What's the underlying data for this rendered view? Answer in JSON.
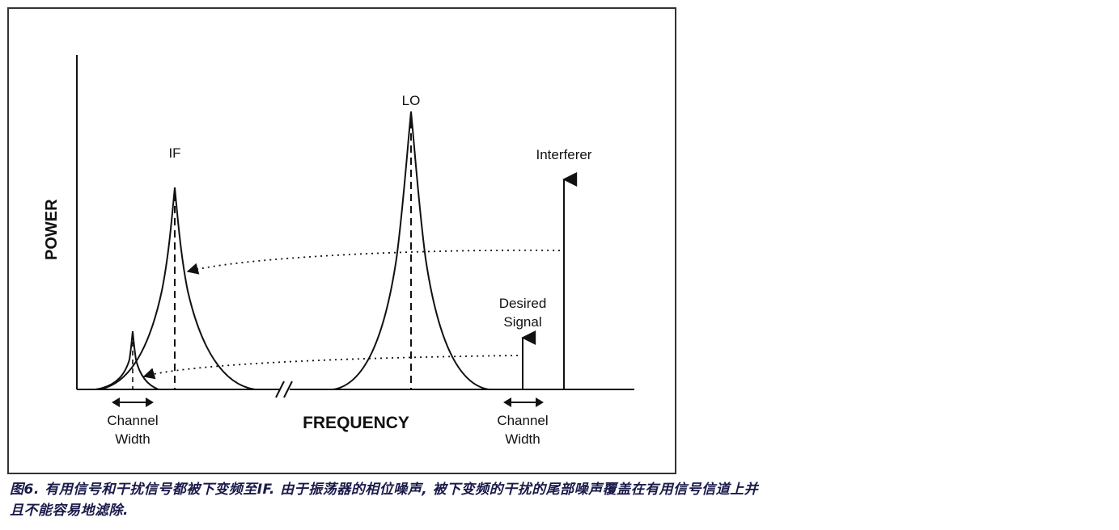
{
  "diagram": {
    "y_axis_label": "POWER",
    "x_axis_label": "FREQUENCY",
    "peaks": {
      "if": "IF",
      "lo": "LO"
    },
    "interferer": "Interferer",
    "desired_signal": [
      "Desired",
      "Signal"
    ],
    "channel_width_left": [
      "Channel",
      "Width"
    ],
    "channel_width_right": [
      "Channel",
      "Width"
    ],
    "axis_break": "//"
  },
  "caption": {
    "line1": "图6. 有用信号和干扰信号都被下变频至IF. 由于振荡器的相位噪声, 被下变频的干扰的尾部噪声覆盖在有用信号信道上并",
    "line2": "且不能容易地滤除."
  },
  "colors": {
    "ink": "#111111",
    "caption": "#1a1a4a"
  }
}
